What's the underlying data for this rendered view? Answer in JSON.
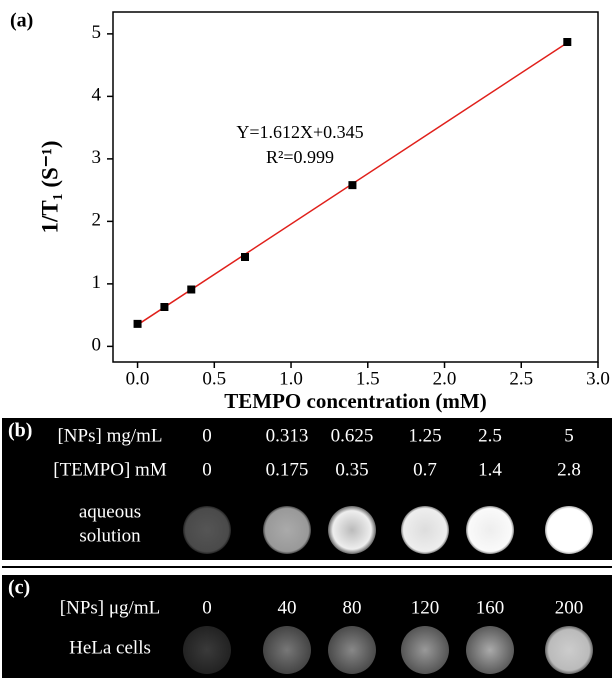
{
  "chart_data": {
    "type": "scatter",
    "panel_label": "(a)",
    "x_label": "TEMPO concentration (mM)",
    "y_label": "1/T₁ (S⁻¹)",
    "x": [
      0,
      0.175,
      0.35,
      0.7,
      1.4,
      2.8
    ],
    "values": [
      0.36,
      0.63,
      0.91,
      1.43,
      2.58,
      4.87
    ],
    "color": "#000000",
    "fit": {
      "slope": 1.612,
      "intercept": 0.345,
      "color": "#e0201b"
    },
    "annotations": [
      "Y=1.612X+0.345",
      "R²=0.999"
    ],
    "xlim": [
      -0.16,
      3.0
    ],
    "ylim": [
      -0.25,
      5.35
    ],
    "xticks": [
      {
        "value": 0,
        "label": "0.0"
      },
      {
        "value": 0.5,
        "label": "0.5"
      },
      {
        "value": 1,
        "label": "1.0"
      },
      {
        "value": 1.5,
        "label": "1.5"
      },
      {
        "value": 2,
        "label": "2.0"
      },
      {
        "value": 2.5,
        "label": "2.5"
      },
      {
        "value": 3,
        "label": "3.0"
      }
    ],
    "yticks": [
      0,
      1,
      2,
      3,
      4,
      5
    ]
  },
  "panel_b": {
    "label": "(b)",
    "rows": [
      {
        "label": "[NPs] mg/mL",
        "values": [
          "0",
          "0.313",
          "0.625",
          "1.25",
          "2.5",
          "5"
        ]
      },
      {
        "label": "[TEMPO] mM",
        "values": [
          "0",
          "0.175",
          "0.35",
          "0.7",
          "1.4",
          "2.8"
        ]
      }
    ],
    "sample_label": [
      "aqueous",
      "solution"
    ]
  },
  "panel_c": {
    "label": "(c)",
    "rows": [
      {
        "label": "[NPs] μg/mL",
        "values": [
          "0",
          "40",
          "80",
          "120",
          "160",
          "200"
        ]
      }
    ],
    "sample_label": [
      "HeLa cells"
    ]
  }
}
